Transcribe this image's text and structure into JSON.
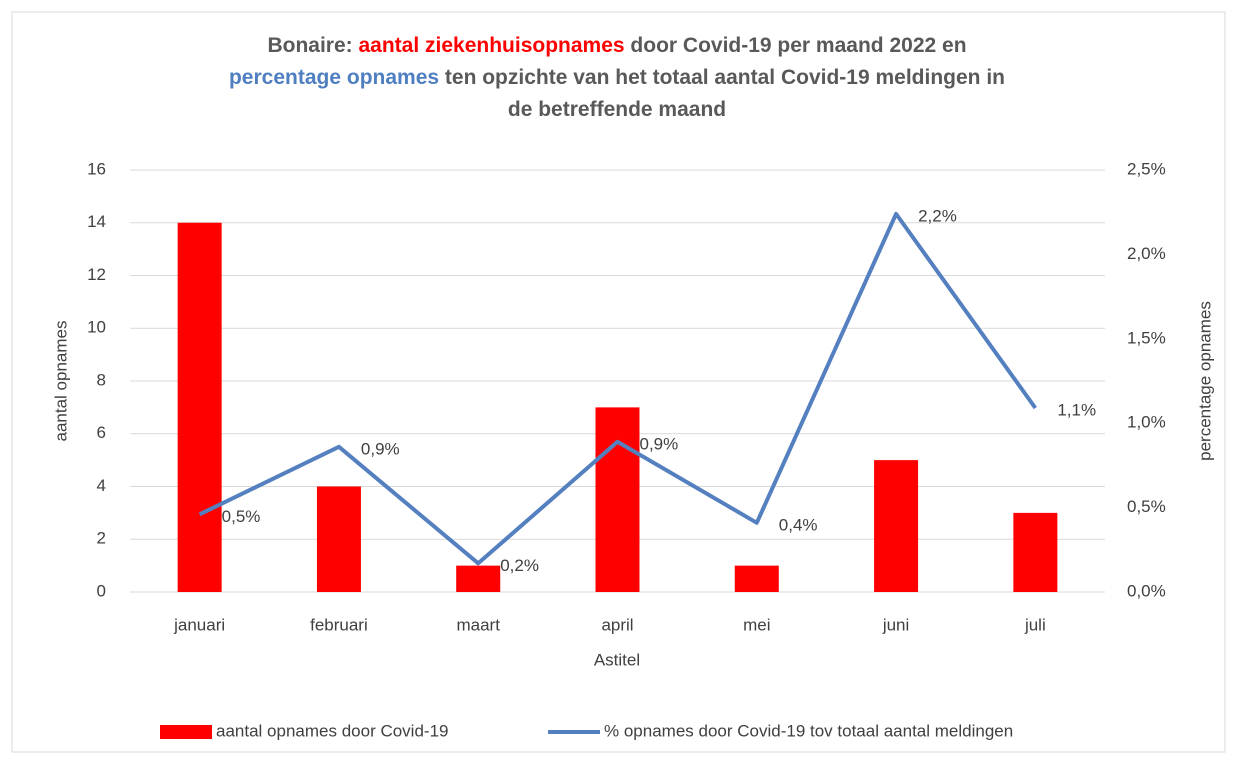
{
  "chart_data": {
    "type": "bar_line",
    "title_lines": [
      [
        {
          "text": "Bonaire: "
        },
        {
          "text": "aantal ziekenhuisopnames",
          "color": "#ff0000"
        },
        {
          "text": " door Covid-19 per maand 2022 en"
        }
      ],
      [
        {
          "text": "percentage opnames",
          "color": "#4f7fc0"
        },
        {
          "text": " ten opzichte van het totaal aantal Covid-19 meldingen in"
        }
      ],
      [
        {
          "text": "de betreffende maand"
        }
      ]
    ],
    "x_label": "Astitel",
    "y_label": "aantal opnames",
    "y2_label": "percentage opnames",
    "categories": [
      "januari",
      "februari",
      "maart",
      "april",
      "mei",
      "juni",
      "juli"
    ],
    "series": [
      {
        "name": "aantal opnames door Covid-19",
        "type": "bar",
        "color": "#ff0000",
        "values": [
          14,
          4,
          1,
          7,
          1,
          5,
          3
        ]
      },
      {
        "name": "% opnames door Covid-19 tov totaal aantal meldingen",
        "type": "line",
        "axis": "y2",
        "color": "#5580c0",
        "values": [
          0.46,
          0.86,
          0.17,
          0.89,
          0.41,
          2.24,
          1.09
        ],
        "value_labels": [
          "0,5%",
          "0,9%",
          "0,2%",
          "0,9%",
          "0,4%",
          "2,2%",
          "1,1%"
        ]
      }
    ],
    "ylim": [
      0,
      16
    ],
    "yticks": [
      0,
      2,
      4,
      6,
      8,
      10,
      12,
      14,
      16
    ],
    "y2lim": [
      0,
      2.5
    ],
    "y2ticks": [
      {
        "value": 0,
        "label": "0,0%"
      },
      {
        "value": 0.5,
        "label": "0,5%"
      },
      {
        "value": 1,
        "label": "1,0%"
      },
      {
        "value": 1.5,
        "label": "1,5%"
      },
      {
        "value": 2,
        "label": "2,0%"
      },
      {
        "value": 2.5,
        "label": "2,5%"
      }
    ],
    "grid": true,
    "legend": "bottom"
  }
}
